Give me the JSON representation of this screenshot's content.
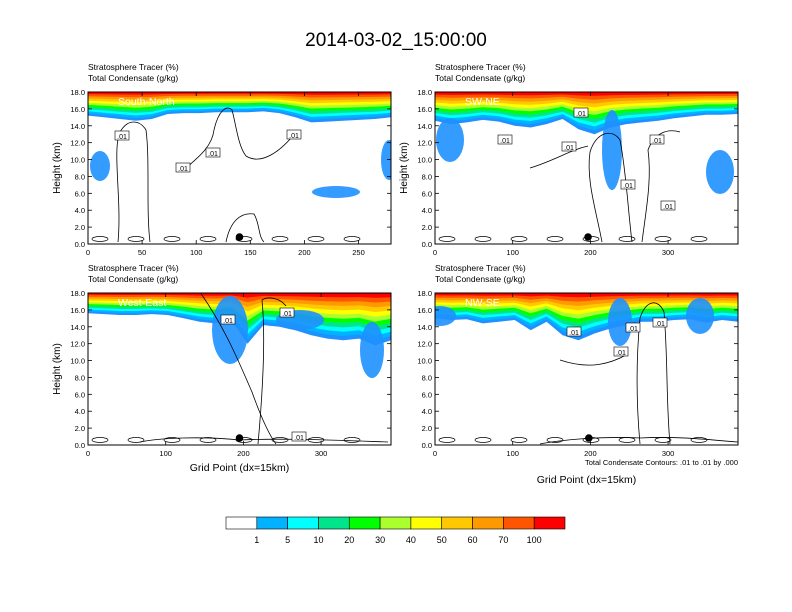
{
  "title": "2014-03-02_15:00:00",
  "chart_data": [
    {
      "type": "heatmap",
      "label": "South-North",
      "subtitle": [
        "Stratosphere Tracer   (%)",
        "Total Condensate   (g/kg)"
      ],
      "ylabel": "Height (km)",
      "xlabel": "",
      "xlim": [
        0,
        280
      ],
      "ylim": [
        0,
        18
      ],
      "xticks": [
        0,
        50,
        100,
        150,
        200,
        250
      ],
      "yticks": [
        0,
        2,
        4,
        6,
        8,
        10,
        12,
        14,
        16,
        18
      ],
      "ytick_labels": [
        "0.0",
        "2.0",
        "4.0",
        "6.0",
        "8.0",
        "10.0",
        "12.0",
        "14.0",
        "16.0",
        "18.0"
      ],
      "contour_labels": [
        ".01",
        ".01",
        ".01",
        ".01"
      ],
      "tracer_base_km": [
        15.2,
        15.0,
        14.8,
        14.6,
        14.8,
        15.4,
        15.5,
        15.5,
        15.6,
        15.6,
        15.6,
        15.7,
        15.5,
        15.0,
        14.4,
        14.5,
        14.6,
        14.7,
        14.8,
        15.0
      ],
      "marker_x": 140
    },
    {
      "type": "heatmap",
      "label": "SW-NE",
      "subtitle": [
        "Stratosphere Tracer   (%)",
        "Total Condensate   (g/kg)"
      ],
      "ylabel": "Height (km)",
      "xlabel": "",
      "xlim": [
        0,
        390
      ],
      "ylim": [
        0,
        18
      ],
      "xticks": [
        0,
        100,
        200,
        300
      ],
      "yticks": [
        0,
        2,
        4,
        6,
        8,
        10,
        12,
        14,
        16,
        18
      ],
      "ytick_labels": [
        "0.0",
        "2.0",
        "4.0",
        "6.0",
        "8.0",
        "10.0",
        "12.0",
        "14.0",
        "16.0",
        "18.0"
      ],
      "contour_labels": [
        ".01",
        ".01",
        ".01",
        ".01",
        ".01",
        ".01"
      ],
      "tracer_base_km": [
        14.6,
        14.2,
        14.4,
        14.7,
        14.5,
        14.0,
        13.8,
        14.2,
        14.8,
        13.6,
        13.0,
        13.8,
        14.2,
        14.4,
        14.6,
        14.9,
        15.1,
        15.3,
        15.3,
        15.4
      ],
      "marker_x": 197
    },
    {
      "type": "heatmap",
      "label": "West-East",
      "subtitle": [
        "Stratosphere Tracer   (%)",
        "Total Condensate   (g/kg)"
      ],
      "ylabel": "Height (km)",
      "xlabel": "Grid Point (dx=15km)",
      "xlim": [
        0,
        390
      ],
      "ylim": [
        0,
        18
      ],
      "xticks": [
        0,
        100,
        200,
        300
      ],
      "yticks": [
        0,
        2,
        4,
        6,
        8,
        10,
        12,
        14,
        16,
        18
      ],
      "ytick_labels": [
        "0.0",
        "2.0",
        "4.0",
        "6.0",
        "8.0",
        "10.0",
        "12.0",
        "14.0",
        "16.0",
        "18.0"
      ],
      "contour_labels": [
        ".01",
        ".01",
        ".01"
      ],
      "tracer_base_km": [
        15.6,
        15.5,
        15.4,
        15.4,
        15.5,
        15.4,
        15.0,
        14.6,
        14.4,
        14.8,
        12.0,
        14.2,
        14.0,
        13.6,
        13.0,
        12.6,
        12.4,
        12.6,
        11.8,
        12.4
      ],
      "marker_x": 195
    },
    {
      "type": "heatmap",
      "label": "NW-SE",
      "subtitle": [
        "Stratosphere Tracer   (%)",
        "Total Condensate   (g/kg)"
      ],
      "ylabel": "",
      "xlabel": "Grid Point (dx=15km)",
      "xlim": [
        0,
        390
      ],
      "ylim": [
        0,
        18
      ],
      "xticks": [
        0,
        100,
        200,
        300
      ],
      "yticks": [
        0,
        2,
        4,
        6,
        8,
        10,
        12,
        14,
        16,
        18
      ],
      "ytick_labels": [
        "0.0",
        "2.0",
        "4.0",
        "6.0",
        "8.0",
        "10.0",
        "12.0",
        "14.0",
        "16.0",
        "18.0"
      ],
      "contour_labels": [
        ".01",
        ".01",
        ".01",
        ".01"
      ],
      "tracer_base_km": [
        15.0,
        14.8,
        14.9,
        14.4,
        14.6,
        14.8,
        13.6,
        14.6,
        13.0,
        12.4,
        13.2,
        13.8,
        14.2,
        14.6,
        14.6,
        14.8,
        14.9,
        14.5,
        14.8,
        14.6
      ],
      "marker_x": 198,
      "footnote": "Total Condensate Contours: .01 to .01 by .000"
    }
  ],
  "colorbar": {
    "labels": [
      "1",
      "5",
      "10",
      "20",
      "30",
      "40",
      "50",
      "60",
      "70",
      "100"
    ],
    "colors": [
      "#ffffff",
      "#1e90ff",
      "#00b2ff",
      "#00ffff",
      "#00e58c",
      "#00ff00",
      "#aaff2d",
      "#ffff00",
      "#ffc800",
      "#ff9900",
      "#ff5500",
      "#ff0000"
    ]
  }
}
